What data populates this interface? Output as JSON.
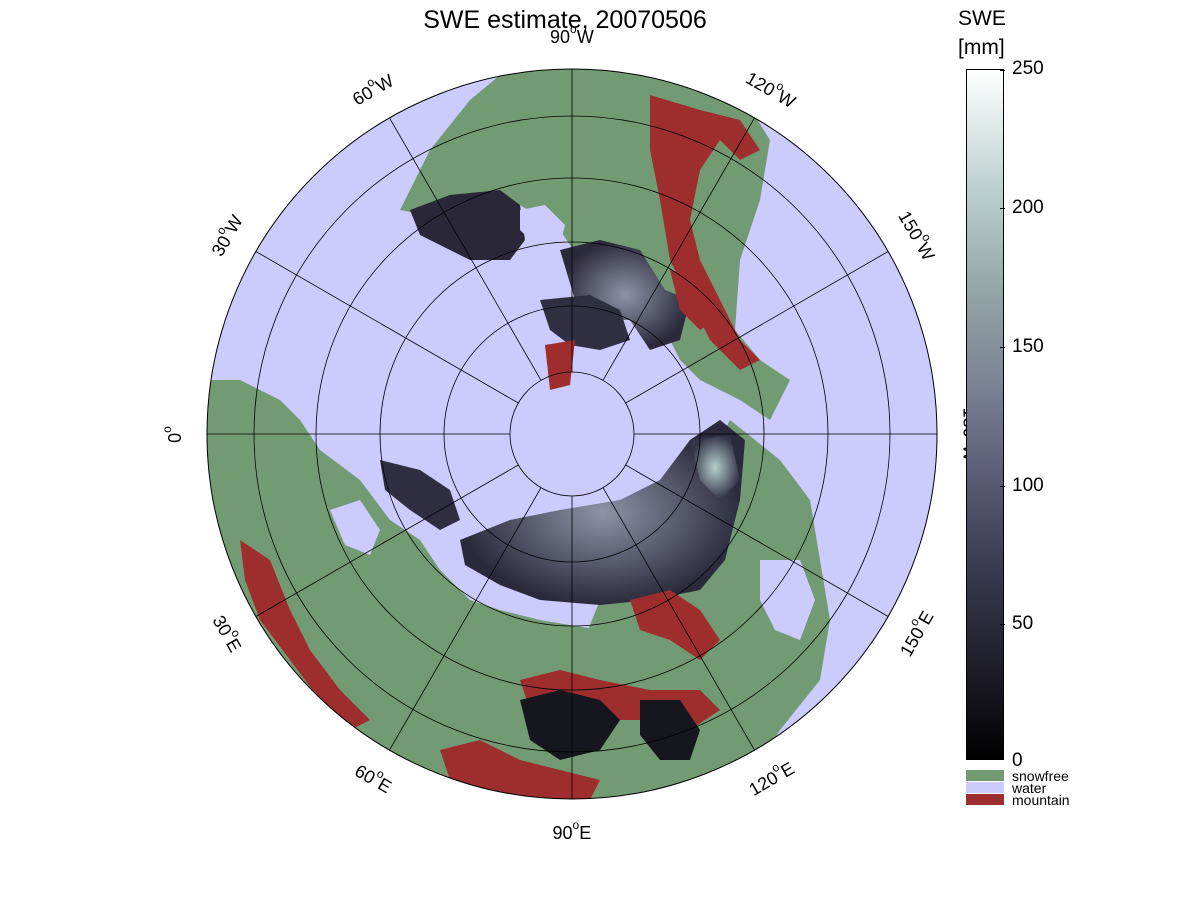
{
  "title": "SWE estimate, 20070506",
  "colorbar": {
    "title_line1": "SWE",
    "title_line2": "[mm]",
    "ticks": [
      "250",
      "200",
      "150",
      "100",
      "50",
      "0"
    ],
    "categories": [
      {
        "label": "snowfree",
        "color": "#739b73"
      },
      {
        "label": "water",
        "color": "#cccbfd"
      },
      {
        "label": "mountain",
        "color": "#9e2e2e"
      }
    ]
  },
  "map": {
    "projection": "north polar stereographic",
    "land_color": "#739b73",
    "water_color": "#cccbfd",
    "mountain_color": "#9e2e2e",
    "longitude_labels": [
      {
        "deg": "90",
        "hem": "W"
      },
      {
        "deg": "120",
        "hem": "W"
      },
      {
        "deg": "150",
        "hem": "W"
      },
      {
        "deg": "180",
        "hem": "W"
      },
      {
        "deg": "150",
        "hem": "E"
      },
      {
        "deg": "120",
        "hem": "E"
      },
      {
        "deg": "90",
        "hem": "E"
      },
      {
        "deg": "60",
        "hem": "E"
      },
      {
        "deg": "30",
        "hem": "E"
      },
      {
        "deg": "0",
        "hem": ""
      },
      {
        "deg": "30",
        "hem": "W"
      },
      {
        "deg": "60",
        "hem": "W"
      }
    ]
  }
}
